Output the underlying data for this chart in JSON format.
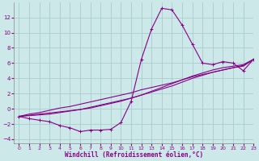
{
  "xlabel": "Windchill (Refroidissement éolien,°C)",
  "ylabel": "",
  "bg_color": "#cce8e8",
  "grid_color": "#aacccc",
  "line_color": "#880088",
  "hours": [
    0,
    1,
    2,
    3,
    4,
    5,
    6,
    7,
    8,
    9,
    10,
    11,
    12,
    13,
    14,
    15,
    16,
    17,
    18,
    19,
    20,
    21,
    22,
    23
  ],
  "curve_main": [
    -1.0,
    -1.3,
    -1.5,
    -1.7,
    -2.2,
    -2.5,
    -3.0,
    -2.8,
    -2.8,
    -2.7,
    -1.8,
    1.0,
    6.5,
    10.5,
    13.2,
    13.0,
    11.0,
    8.5,
    6.0,
    5.8,
    6.2,
    6.0,
    5.0,
    6.5
  ],
  "curve_linear1": [
    -1.0,
    -0.7,
    -0.5,
    -0.2,
    0.1,
    0.3,
    0.6,
    0.9,
    1.2,
    1.5,
    1.8,
    2.1,
    2.5,
    2.8,
    3.1,
    3.4,
    3.8,
    4.2,
    4.5,
    4.8,
    5.1,
    5.4,
    5.6,
    6.5
  ],
  "curve_linear2": [
    -1.0,
    -0.85,
    -0.7,
    -0.55,
    -0.4,
    -0.25,
    -0.1,
    0.2,
    0.5,
    0.8,
    1.1,
    1.4,
    1.8,
    2.2,
    2.6,
    3.0,
    3.5,
    4.0,
    4.4,
    4.8,
    5.1,
    5.4,
    5.7,
    6.5
  ],
  "curve_linear3": [
    -1.0,
    -0.9,
    -0.8,
    -0.7,
    -0.5,
    -0.3,
    -0.1,
    0.1,
    0.4,
    0.7,
    1.0,
    1.4,
    1.8,
    2.3,
    2.8,
    3.3,
    3.8,
    4.3,
    4.7,
    5.1,
    5.4,
    5.6,
    5.8,
    6.5
  ],
  "ylim": [
    -4.5,
    14
  ],
  "xlim": [
    -0.5,
    23
  ],
  "yticks": [
    -4,
    -2,
    0,
    2,
    4,
    6,
    8,
    10,
    12
  ],
  "xticks": [
    0,
    1,
    2,
    3,
    4,
    5,
    6,
    7,
    8,
    9,
    10,
    11,
    12,
    13,
    14,
    15,
    16,
    17,
    18,
    19,
    20,
    21,
    22,
    23
  ]
}
